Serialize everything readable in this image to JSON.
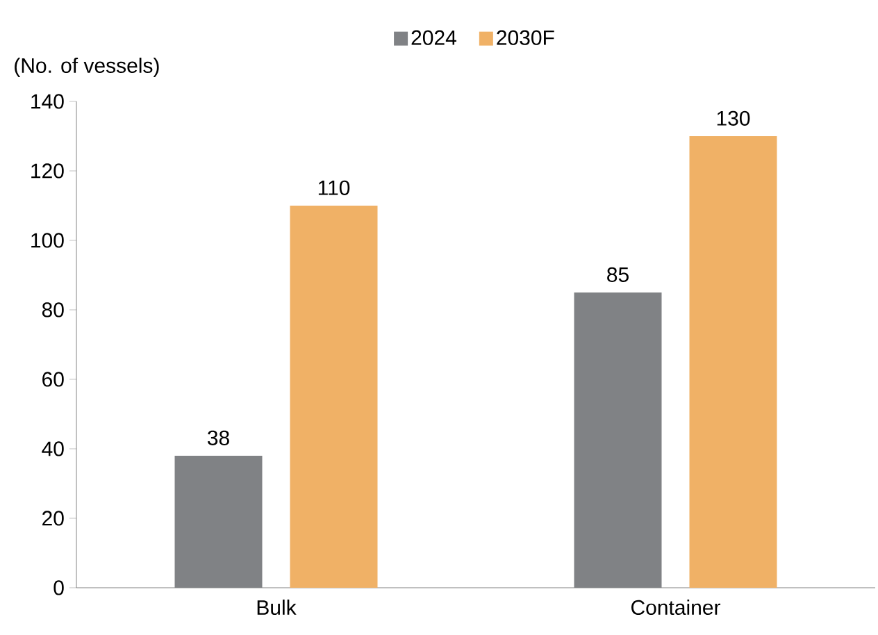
{
  "chart_data": {
    "type": "bar",
    "ylabel": "(No. of vessels)",
    "categories": [
      "Bulk",
      "Container"
    ],
    "series": [
      {
        "name": "2024",
        "color": "#808285",
        "values": [
          38,
          85
        ]
      },
      {
        "name": "2030F",
        "color": "#f0b166",
        "values": [
          110,
          130
        ]
      }
    ],
    "ylim": [
      0,
      140
    ],
    "yticks": [
      0,
      20,
      40,
      60,
      80,
      100,
      120,
      140
    ],
    "data_labels": true,
    "legend": "top",
    "grid": false
  }
}
